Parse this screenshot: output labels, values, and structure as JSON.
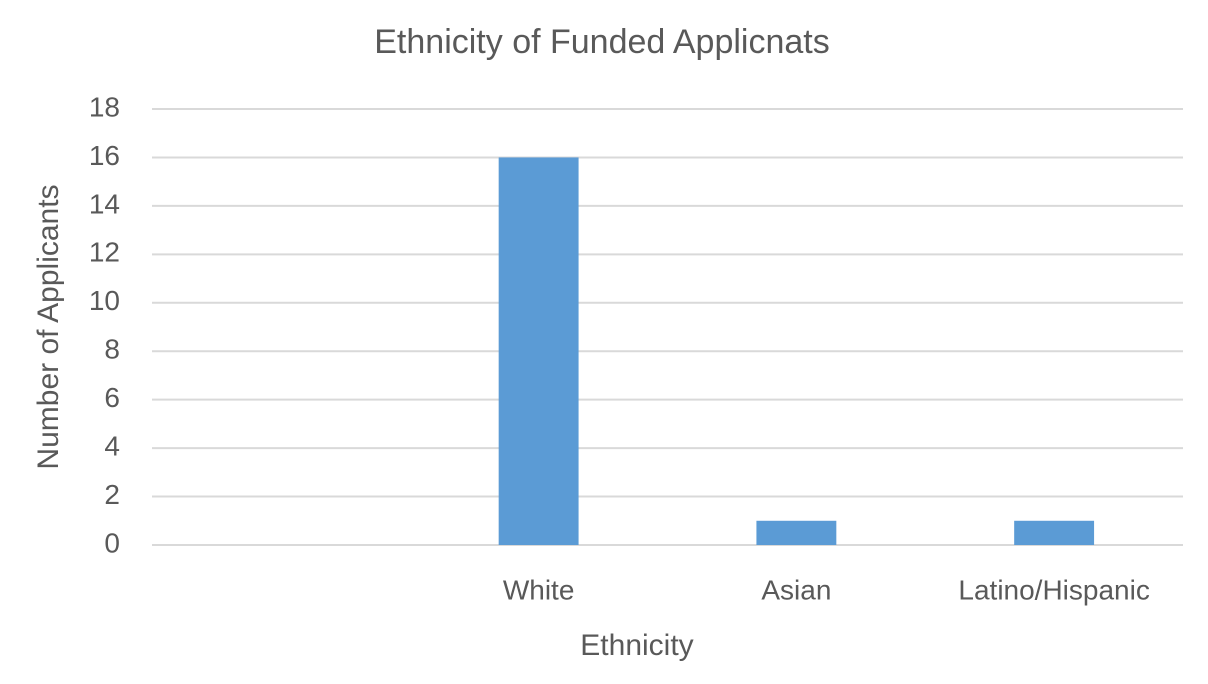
{
  "chart_data": {
    "type": "bar",
    "title": "Ethnicity of Funded Applicnats",
    "x_label": "Ethnicity",
    "y_label": "Number of Applicants",
    "categories": [
      null,
      "White",
      "Asian",
      "Latino/Hispanic"
    ],
    "values": [
      null,
      16,
      1,
      1
    ],
    "color": "#5b9bd5",
    "ylim": [
      0,
      18
    ],
    "yticks": [
      0,
      2,
      4,
      6,
      8,
      10,
      12,
      14,
      16,
      18
    ],
    "grid": true
  }
}
